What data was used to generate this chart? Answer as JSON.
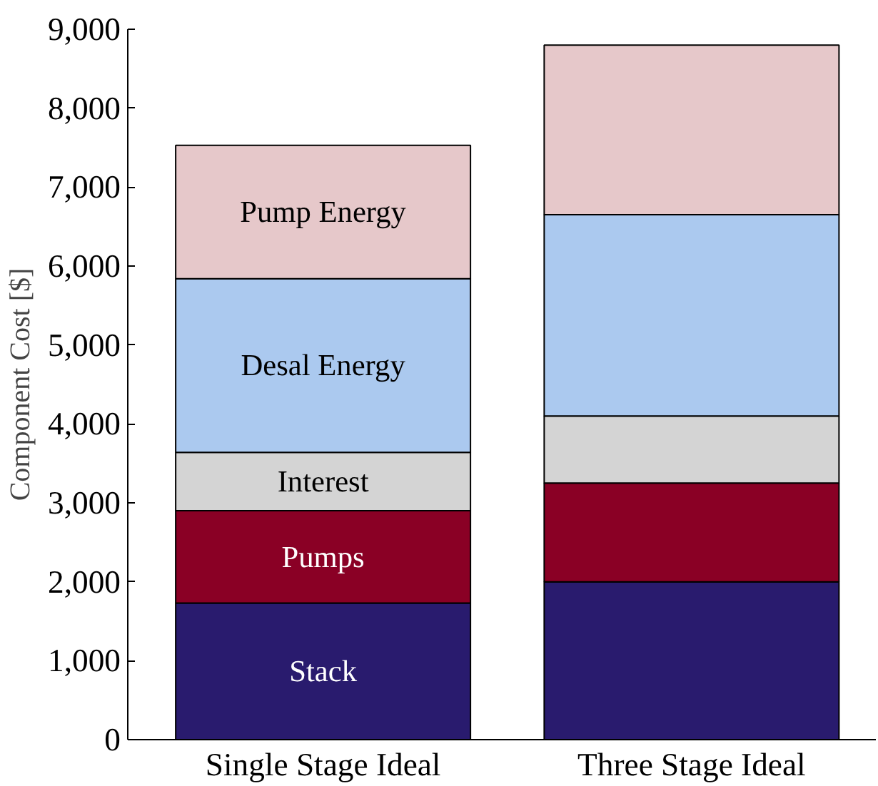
{
  "chart_data": {
    "type": "bar",
    "stacked": true,
    "ylabel": "Component Cost [$]",
    "categories": [
      "Single Stage Ideal",
      "Three Stage Ideal"
    ],
    "series": [
      {
        "name": "Stack",
        "color": "#291b6e",
        "values": [
          1730,
          2000
        ]
      },
      {
        "name": "Pumps",
        "color": "#8a0025",
        "values": [
          1170,
          1250
        ]
      },
      {
        "name": "Interest",
        "color": "#d4d4d4",
        "values": [
          740,
          850
        ]
      },
      {
        "name": "Desal Energy",
        "color": "#abc9ef",
        "values": [
          2200,
          2550
        ]
      },
      {
        "name": "Pump Energy",
        "color": "#e6c8ca",
        "values": [
          1690,
          2150
        ]
      }
    ],
    "ylim": [
      0,
      9000
    ],
    "yticks": [
      0,
      {
        "value": 1000,
        "label": "1,000"
      },
      {
        "value": 2000,
        "label": "2,000"
      },
      {
        "value": 3000,
        "label": "3,000"
      },
      {
        "value": 4000,
        "label": "4,000"
      },
      {
        "value": 5000,
        "label": "5,000"
      },
      {
        "value": 6000,
        "label": "6,000"
      },
      {
        "value": 7000,
        "label": "7,000"
      },
      {
        "value": 8000,
        "label": "8,000"
      },
      {
        "value": 9000,
        "label": "9,000"
      }
    ],
    "grid": false,
    "legend": false
  }
}
